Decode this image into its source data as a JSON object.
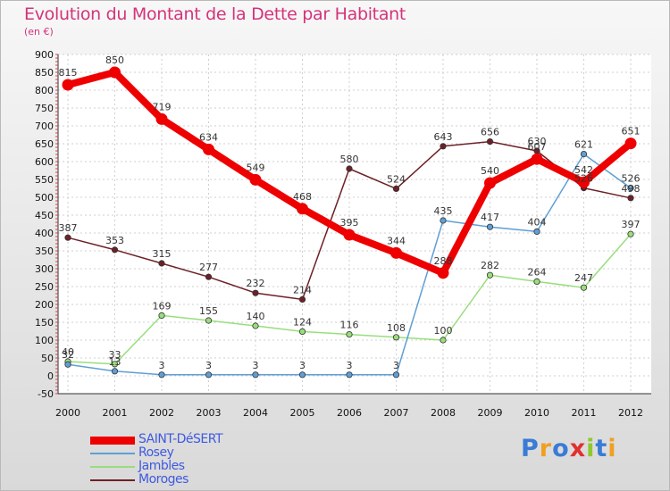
{
  "title": "Evolution du Montant de la Dette par Habitant",
  "unit": "(en €)",
  "logo": "Proxiti",
  "chart_data": {
    "type": "line",
    "x": [
      "2000",
      "2001",
      "2002",
      "2003",
      "2004",
      "2005",
      "2006",
      "2007",
      "2008",
      "2009",
      "2010",
      "2011",
      "2012"
    ],
    "ylim": [
      -50,
      900
    ],
    "yticks": [
      -50,
      0,
      50,
      100,
      150,
      200,
      250,
      300,
      350,
      400,
      450,
      500,
      550,
      600,
      650,
      700,
      750,
      800,
      850,
      900
    ],
    "grid": true,
    "legend_position": "bottom-left",
    "series": [
      {
        "name": "SAINT-DéSERT",
        "color": "#ee0000",
        "values": [
          815,
          850,
          719,
          634,
          549,
          468,
          395,
          344,
          288,
          540,
          607,
          542,
          651
        ]
      },
      {
        "name": "Rosey",
        "color": "#5f9fd4",
        "values": [
          32,
          13,
          3,
          3,
          3,
          3,
          3,
          3,
          435,
          417,
          404,
          621,
          526
        ]
      },
      {
        "name": "Jambles",
        "color": "#99de7c",
        "values": [
          40,
          33,
          169,
          155,
          140,
          124,
          116,
          108,
          100,
          282,
          264,
          247,
          397
        ]
      },
      {
        "name": "Moroges",
        "color": "#6e2027",
        "values": [
          387,
          353,
          315,
          277,
          232,
          214,
          580,
          524,
          643,
          656,
          630,
          526,
          498
        ]
      }
    ],
    "labels": [
      {
        "series": 0,
        "values": [
          "815",
          "850",
          "719",
          "634",
          "549",
          "468",
          "395",
          "344",
          "288",
          "540",
          "607",
          "542",
          "651"
        ]
      },
      {
        "series": 1,
        "values": [
          "32",
          "13",
          "3",
          "3",
          "3",
          "3",
          "3",
          "3",
          "435",
          "417",
          "404",
          "621",
          "526"
        ]
      },
      {
        "series": 2,
        "values": [
          "40",
          "33",
          "169",
          "155",
          "140",
          "124",
          "116",
          "108",
          "100",
          "282",
          "264",
          "247",
          "397"
        ]
      },
      {
        "series": 3,
        "values": [
          "387",
          "353",
          "315",
          "277",
          "232",
          "214",
          "580",
          "524",
          "643",
          "656",
          "630",
          "526",
          "498"
        ]
      }
    ]
  }
}
